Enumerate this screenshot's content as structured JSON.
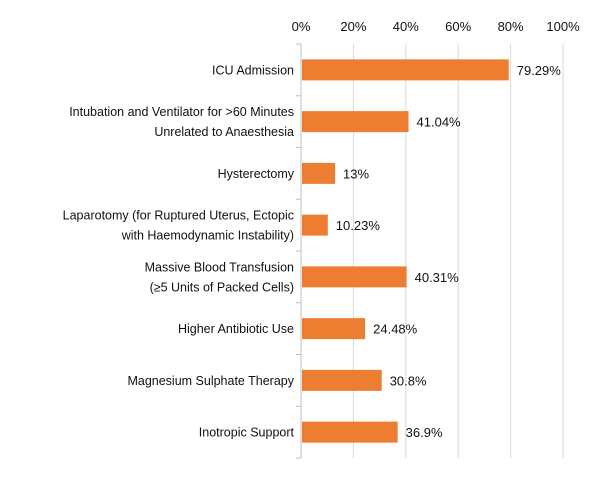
{
  "chart_data": {
    "type": "bar",
    "orientation": "horizontal",
    "title": "",
    "xlabel": "",
    "ylabel": "",
    "xlim": [
      0,
      100
    ],
    "x_ticks": [
      "0%",
      "20%",
      "40%",
      "60%",
      "80%",
      "100%"
    ],
    "x_tick_values": [
      0,
      20,
      40,
      60,
      80,
      100
    ],
    "grid": true,
    "bar_color": "#ED7D31",
    "categories": [
      [
        "ICU Admission"
      ],
      [
        "Intubation and Ventilator for >60 Minutes",
        "Unrelated to Anaesthesia"
      ],
      [
        "Hysterectomy"
      ],
      [
        "Laparotomy (for Ruptured Uterus, Ectopic",
        "with Haemodynamic Instability)"
      ],
      [
        "Massive Blood Transfusion",
        "(≥5 Units of Packed Cells)"
      ],
      [
        "Higher Antibiotic Use"
      ],
      [
        "Magnesium Sulphate Therapy"
      ],
      [
        "Inotropic Support"
      ]
    ],
    "values": [
      79.29,
      41.04,
      13,
      10.23,
      40.31,
      24.48,
      30.8,
      36.9
    ],
    "data_labels": [
      "79.29%",
      "41.04%",
      "13%",
      "10.23%",
      "40.31%",
      "24.48%",
      "30.8%",
      "36.9%"
    ]
  }
}
